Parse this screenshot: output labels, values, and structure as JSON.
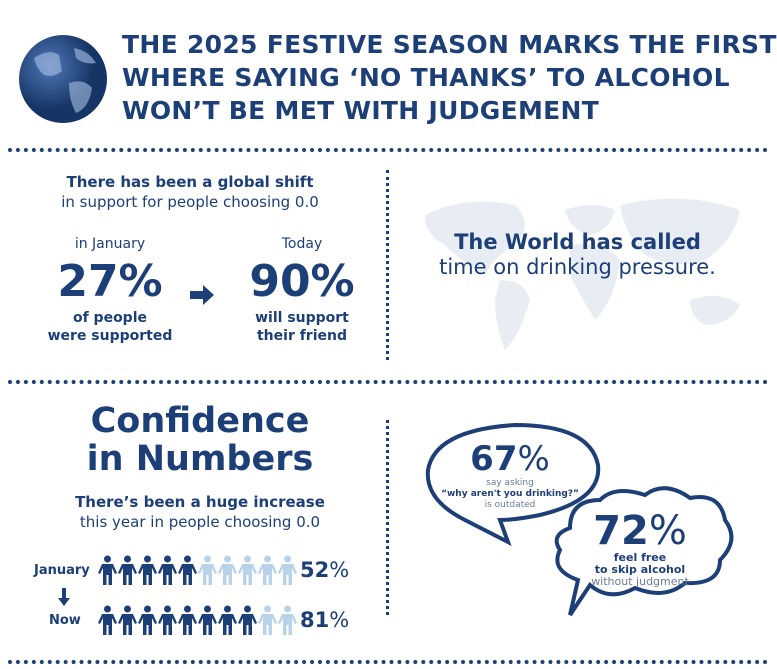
{
  "header": {
    "title_lines": [
      "THE 2025 FESTIVE SEASON MARKS THE FIRST",
      "WHERE SAYING ‘NO THANKS’ TO ALCOHOL",
      "WON’T BE MET WITH JUDGEMENT"
    ],
    "icon": "globe-icon"
  },
  "shift": {
    "line1": "There has been a global shift",
    "line2": "in support for people choosing 0.0",
    "january": {
      "label": "in January",
      "value": "27%",
      "caption1": "of people",
      "caption2": "were supported"
    },
    "today": {
      "label": "Today",
      "value": "90%",
      "caption1": "will support",
      "caption2": "their friend"
    },
    "arrow_icon": "arrow-right-icon"
  },
  "world": {
    "line1": "The World has called",
    "line2": "time on drinking pressure.",
    "icon": "world-map-icon"
  },
  "confidence": {
    "title1": "Confidence",
    "title2": "in Numbers",
    "sub1": "There’s been a huge increase",
    "sub2": "this year in people choosing 0.0",
    "rows": [
      {
        "label": "January",
        "value": "52",
        "percent": 52
      },
      {
        "label": "Now",
        "value": "81",
        "percent": 81
      }
    ],
    "icons_per_row": 10,
    "down_arrow_icon": "arrow-down-icon"
  },
  "bubbles": {
    "b1": {
      "value": "67",
      "l1": "say asking",
      "l2": "“why aren't you drinking?”",
      "l3": "is outdated"
    },
    "b2": {
      "value": "72",
      "l1": "feel free",
      "l2": "to skip alcohol",
      "l3": "without judgment"
    }
  },
  "pct_sign": "%",
  "colors": {
    "navy": "#1d3f78",
    "light": "#b8d2ea",
    "map": "#e8edf4"
  }
}
